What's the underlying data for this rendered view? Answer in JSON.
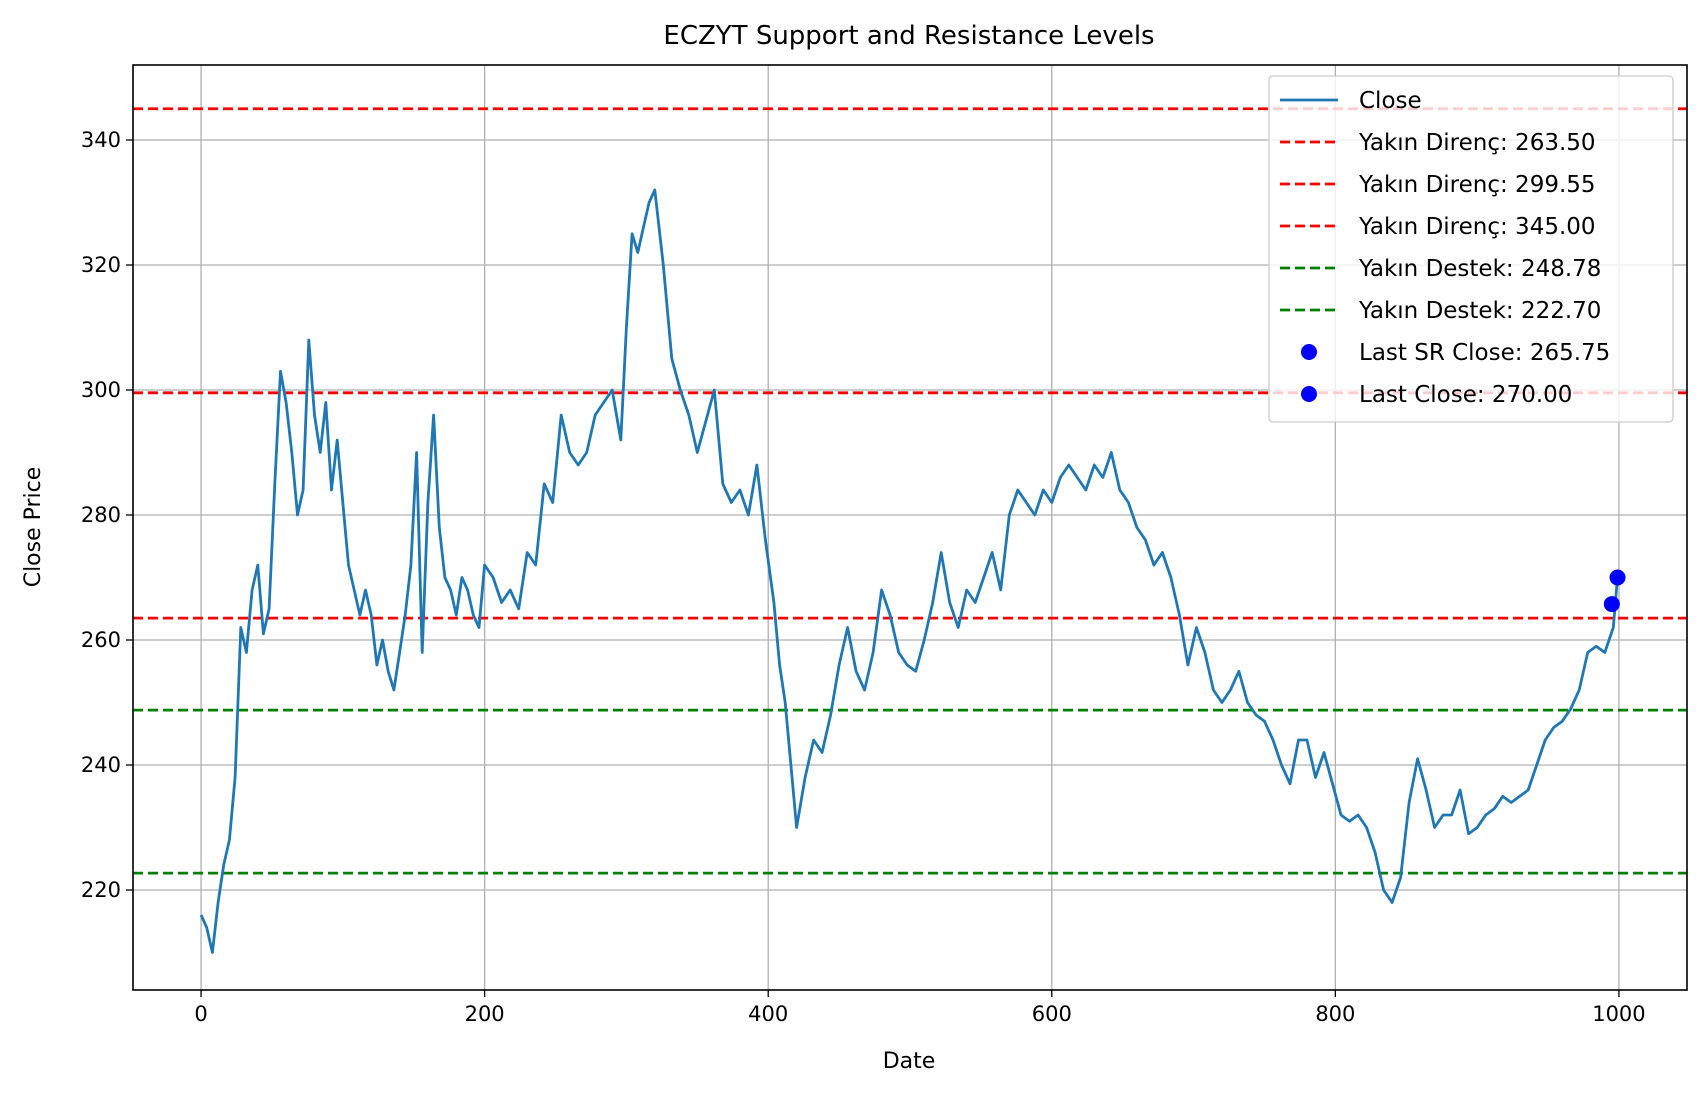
{
  "chart_data": {
    "type": "line",
    "title": "ECZYT Support and Resistance Levels",
    "xlabel": "Date",
    "ylabel": "Close Price",
    "xlim": [
      -48,
      1048
    ],
    "ylim": [
      204,
      352
    ],
    "xticks": [
      0,
      200,
      400,
      600,
      800,
      1000
    ],
    "yticks": [
      220,
      240,
      260,
      280,
      300,
      320,
      340
    ],
    "grid": true,
    "legend_position": "top-right",
    "series": [
      {
        "name": "Close",
        "color": "#1f77b4",
        "x": [
          0,
          4,
          8,
          12,
          16,
          20,
          24,
          28,
          32,
          36,
          40,
          44,
          48,
          52,
          56,
          60,
          64,
          68,
          72,
          76,
          80,
          84,
          88,
          92,
          96,
          100,
          104,
          108,
          112,
          116,
          120,
          124,
          128,
          132,
          136,
          140,
          144,
          148,
          152,
          156,
          160,
          164,
          168,
          172,
          176,
          180,
          184,
          188,
          192,
          196,
          200,
          206,
          212,
          218,
          224,
          230,
          236,
          242,
          248,
          254,
          260,
          266,
          272,
          278,
          284,
          290,
          296,
          300,
          304,
          308,
          312,
          316,
          320,
          326,
          332,
          338,
          344,
          350,
          356,
          362,
          368,
          374,
          380,
          386,
          392,
          398,
          404,
          408,
          412,
          416,
          420,
          426,
          432,
          438,
          444,
          450,
          456,
          462,
          468,
          474,
          480,
          486,
          492,
          498,
          504,
          510,
          516,
          522,
          528,
          534,
          540,
          546,
          552,
          558,
          564,
          570,
          576,
          582,
          588,
          594,
          600,
          606,
          612,
          618,
          624,
          630,
          636,
          642,
          648,
          654,
          660,
          666,
          672,
          678,
          684,
          690,
          696,
          702,
          708,
          714,
          720,
          726,
          732,
          738,
          744,
          750,
          756,
          762,
          768,
          774,
          780,
          786,
          792,
          798,
          804,
          810,
          816,
          822,
          828,
          834,
          840,
          846,
          852,
          858,
          864,
          870,
          876,
          882,
          888,
          894,
          900,
          906,
          912,
          918,
          924,
          930,
          936,
          942,
          948,
          954,
          960,
          966,
          972,
          978,
          984,
          990,
          996,
          999
        ],
        "y": [
          216,
          214,
          210,
          218,
          224,
          228,
          238,
          262,
          258,
          268,
          272,
          261,
          265,
          285,
          303,
          298,
          290,
          280,
          284,
          308,
          296,
          290,
          298,
          284,
          292,
          282,
          272,
          268,
          264,
          268,
          264,
          256,
          260,
          255,
          252,
          258,
          264,
          272,
          290,
          258,
          282,
          296,
          278,
          270,
          268,
          264,
          270,
          268,
          264,
          262,
          272,
          270,
          266,
          268,
          265,
          274,
          272,
          285,
          282,
          296,
          290,
          288,
          290,
          296,
          298,
          300,
          292,
          310,
          325,
          322,
          326,
          330,
          332,
          320,
          305,
          300,
          296,
          290,
          295,
          300,
          285,
          282,
          284,
          280,
          288,
          276,
          266,
          256,
          250,
          240,
          230,
          238,
          244,
          242,
          248,
          256,
          262,
          255,
          252,
          258,
          268,
          264,
          258,
          256,
          255,
          260,
          266,
          274,
          266,
          262,
          268,
          266,
          270,
          274,
          268,
          280,
          284,
          282,
          280,
          284,
          282,
          286,
          288,
          286,
          284,
          288,
          286,
          290,
          284,
          282,
          278,
          276,
          272,
          274,
          270,
          264,
          256,
          262,
          258,
          252,
          250,
          252,
          255,
          250,
          248,
          247,
          244,
          240,
          237,
          244,
          244,
          238,
          242,
          237,
          232,
          231,
          232,
          230,
          226,
          220,
          218,
          222,
          234,
          241,
          236,
          230,
          232,
          232,
          236,
          229,
          230,
          232,
          233,
          235,
          234,
          235,
          236,
          240,
          244,
          246,
          247,
          249,
          252,
          258,
          259,
          258,
          262,
          270
        ]
      }
    ],
    "hlines": [
      {
        "label": "Yakın Direnç: 263.50",
        "y": 263.5,
        "color": "#ff0000"
      },
      {
        "label": "Yakın Direnç: 299.55",
        "y": 299.55,
        "color": "#ff0000"
      },
      {
        "label": "Yakın Direnç: 345.00",
        "y": 345.0,
        "color": "#ff0000"
      },
      {
        "label": "Yakın Destek: 248.78",
        "y": 248.78,
        "color": "#008000"
      },
      {
        "label": "Yakın Destek: 222.70",
        "y": 222.7,
        "color": "#008000"
      }
    ],
    "points": [
      {
        "label": "Last SR Close: 265.75",
        "x": 995,
        "y": 265.75,
        "color": "#0000ff"
      },
      {
        "label": "Last Close: 270.00",
        "x": 999,
        "y": 270.0,
        "color": "#0000ff"
      }
    ]
  }
}
